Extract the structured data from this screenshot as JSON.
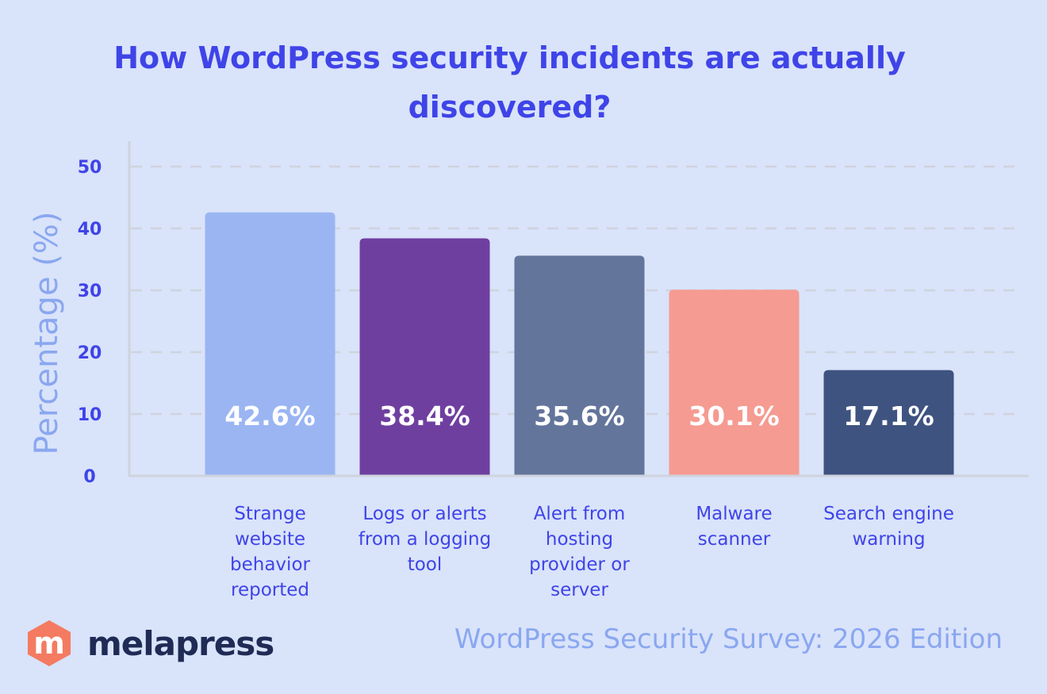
{
  "chart_data": {
    "type": "bar",
    "title": "How WordPress security incidents are actually discovered?",
    "title_lines": [
      "How WordPress security incidents are actually",
      "discovered?"
    ],
    "ylabel": "Percentage (%)",
    "xlabel": "",
    "ylim": [
      0,
      50
    ],
    "yticks": [
      0,
      10,
      20,
      30,
      40,
      50
    ],
    "grid": true,
    "categories": [
      [
        "Strange",
        "website",
        "behavior",
        "reported"
      ],
      [
        "Logs or alerts",
        "from a logging",
        "tool"
      ],
      [
        "Alert from",
        "hosting",
        "provider or",
        "server"
      ],
      [
        "Malware",
        "scanner"
      ],
      [
        "Search engine",
        "warning"
      ]
    ],
    "values": [
      42.6,
      38.4,
      35.6,
      30.1,
      17.1
    ],
    "value_labels": [
      "42.6%",
      "38.4%",
      "35.6%",
      "30.1%",
      "17.1%"
    ],
    "colors": [
      "#9ab5f2",
      "#6f3fa0",
      "#63759b",
      "#f59b92",
      "#3f5380"
    ]
  },
  "footer": {
    "brand": "melapress",
    "logo_letter": "m",
    "source": "WordPress Security Survey: 2026 Edition"
  },
  "theme": {
    "background": "#d9e3fa",
    "accent": "#3f44e8",
    "ylabel_color": "#8aa7f0"
  }
}
